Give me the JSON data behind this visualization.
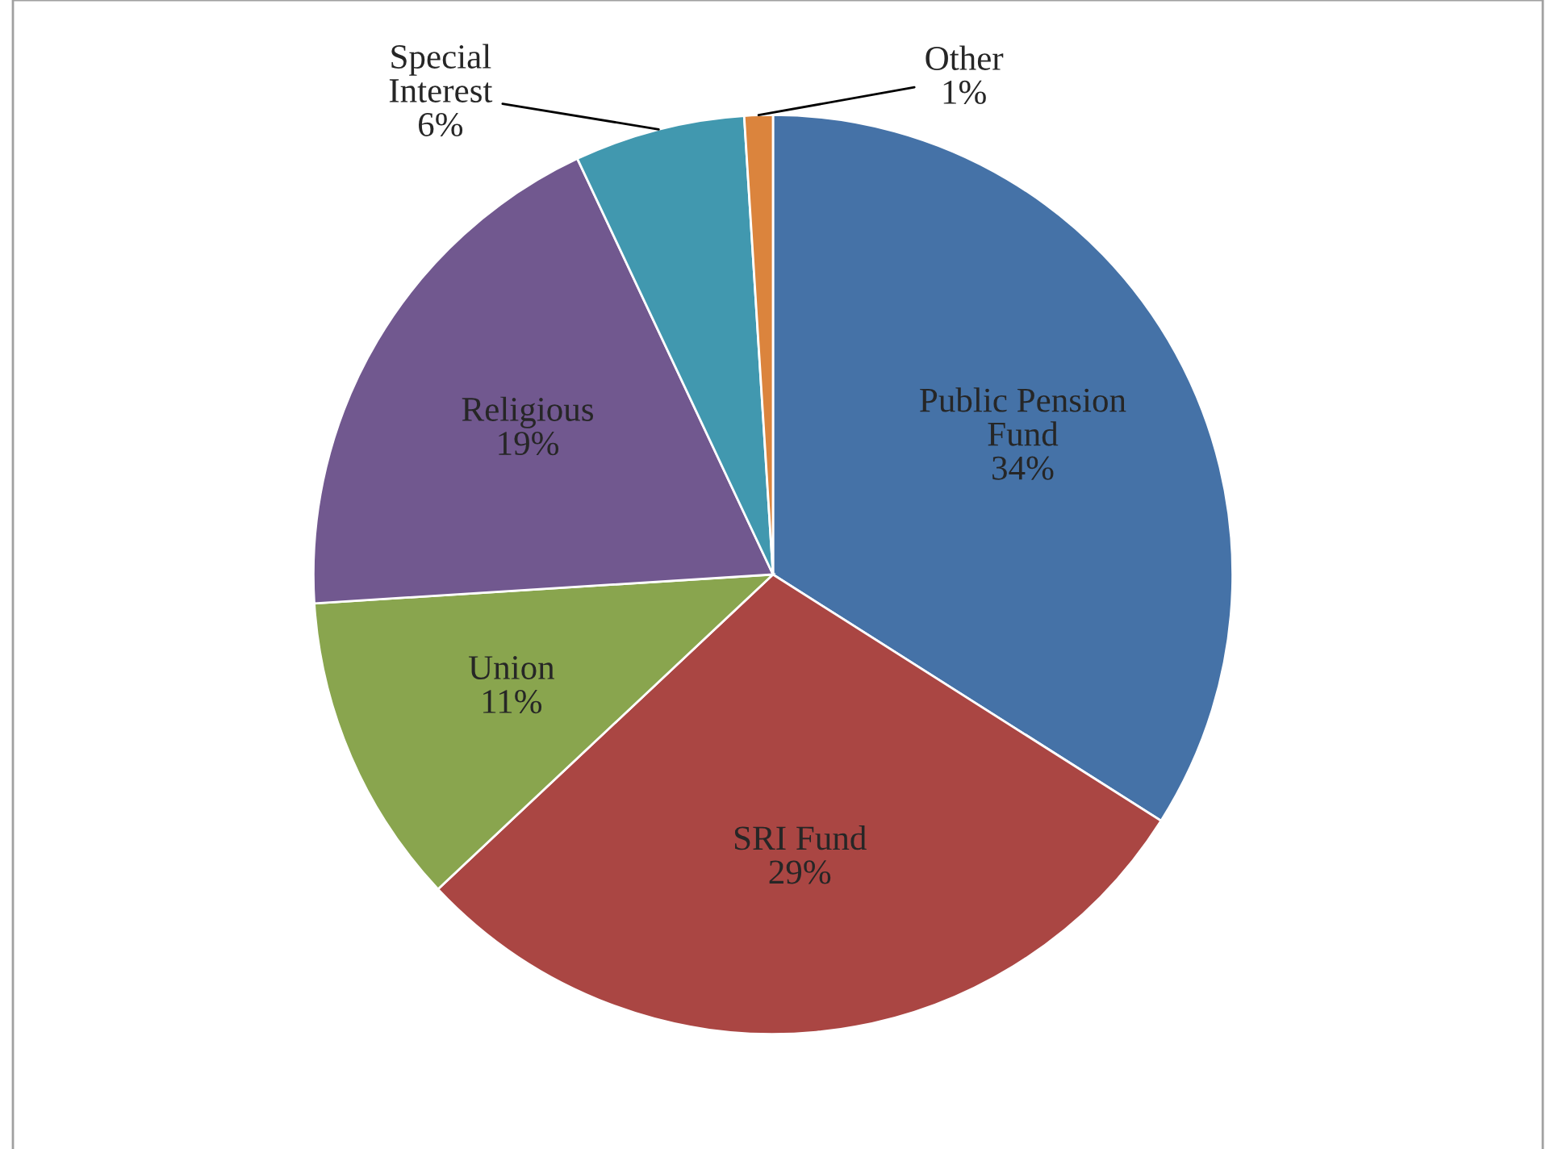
{
  "chart_data": {
    "type": "pie",
    "categories": [
      "Public Pension\nFund",
      "SRI Fund",
      "Union",
      "Religious",
      "Special\nInterest",
      "Other"
    ],
    "values": [
      34,
      29,
      11,
      19,
      6,
      1
    ],
    "value_labels": [
      "34%",
      "29%",
      "11%",
      "19%",
      "6%",
      "1%"
    ],
    "colors": [
      "#4572a7",
      "#aa4643",
      "#89a54e",
      "#71588f",
      "#4198af",
      "#db843d"
    ],
    "legend": false
  }
}
